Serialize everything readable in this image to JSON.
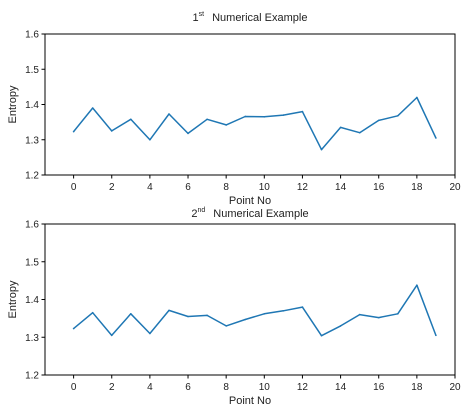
{
  "line_color": "#1f77b4",
  "chart_data": [
    {
      "type": "line",
      "title_ordinal": "1",
      "title_suffix": "st",
      "title_text": "Numerical Example",
      "xlabel": "Point No",
      "ylabel": "Entropy",
      "xlim": [
        -1.5,
        20
      ],
      "ylim": [
        1.2,
        1.6
      ],
      "xticks": [
        "0",
        "2",
        "4",
        "6",
        "8",
        "10",
        "12",
        "14",
        "16",
        "18",
        "20"
      ],
      "yticks": [
        "1.2",
        "1.3",
        "1.4",
        "1.5",
        "1.6"
      ],
      "grid": false,
      "series": [
        {
          "x": [
            0,
            1,
            2,
            3,
            4,
            5,
            6,
            7,
            8,
            9,
            10,
            11,
            12,
            13,
            14,
            15,
            16,
            17,
            18,
            19
          ],
          "y": [
            1.323,
            1.39,
            1.325,
            1.358,
            1.3,
            1.373,
            1.318,
            1.358,
            1.342,
            1.366,
            1.365,
            1.37,
            1.38,
            1.272,
            1.335,
            1.32,
            1.355,
            1.368,
            1.42,
            1.305
          ]
        }
      ]
    },
    {
      "type": "line",
      "title_ordinal": "2",
      "title_suffix": "nd",
      "title_text": "Numerical Example",
      "xlabel": "Point No",
      "ylabel": "Entropy",
      "xlim": [
        -1.5,
        20
      ],
      "ylim": [
        1.2,
        1.6
      ],
      "xticks": [
        "0",
        "2",
        "4",
        "6",
        "8",
        "10",
        "12",
        "14",
        "16",
        "18",
        "20"
      ],
      "yticks": [
        "1.2",
        "1.3",
        "1.4",
        "1.5",
        "1.6"
      ],
      "grid": false,
      "series": [
        {
          "x": [
            0,
            1,
            2,
            3,
            4,
            5,
            6,
            7,
            8,
            9,
            10,
            11,
            12,
            13,
            14,
            15,
            16,
            17,
            18,
            19
          ],
          "y": [
            1.323,
            1.365,
            1.305,
            1.362,
            1.31,
            1.371,
            1.355,
            1.358,
            1.33,
            1.347,
            1.362,
            1.37,
            1.38,
            1.304,
            1.33,
            1.36,
            1.352,
            1.362,
            1.438,
            1.305
          ]
        }
      ]
    }
  ]
}
